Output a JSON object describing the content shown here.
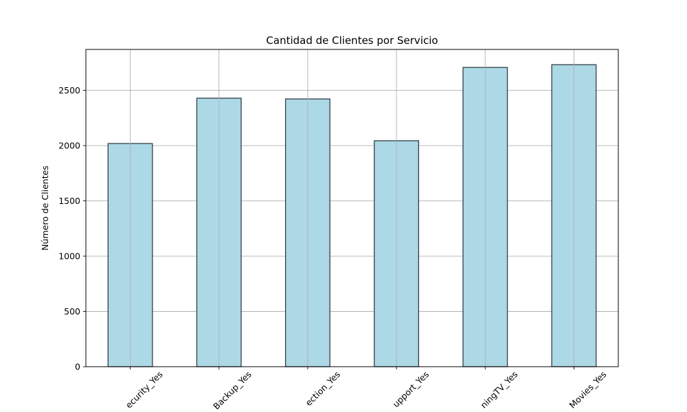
{
  "chart_data": {
    "type": "bar",
    "title": "Cantidad de Clientes por Servicio",
    "xlabel": "",
    "ylabel": "Número de Clientes",
    "categories": [
      "OnlineSecurity_Yes",
      "OnlineBackup_Yes",
      "DeviceProtection_Yes",
      "TechSupport_Yes",
      "StreamingTV_Yes",
      "StreamingMovies_Yes"
    ],
    "tick_labels_visible": [
      "ecurity_Yes",
      "Backup_Yes",
      "ection_Yes",
      "upport_Yes",
      "ningTV_Yes",
      "Movies_Yes"
    ],
    "values": [
      2019,
      2429,
      2422,
      2044,
      2707,
      2732
    ],
    "ylim": [
      0,
      2870
    ],
    "yticks": [
      0,
      500,
      1000,
      1500,
      2000,
      2500
    ],
    "grid": true,
    "legend": "none",
    "colors": {
      "bar_fill": "#add8e6",
      "bar_edge": "#2f3f45",
      "grid": "#b0b0b0",
      "axes": "#000000"
    }
  }
}
